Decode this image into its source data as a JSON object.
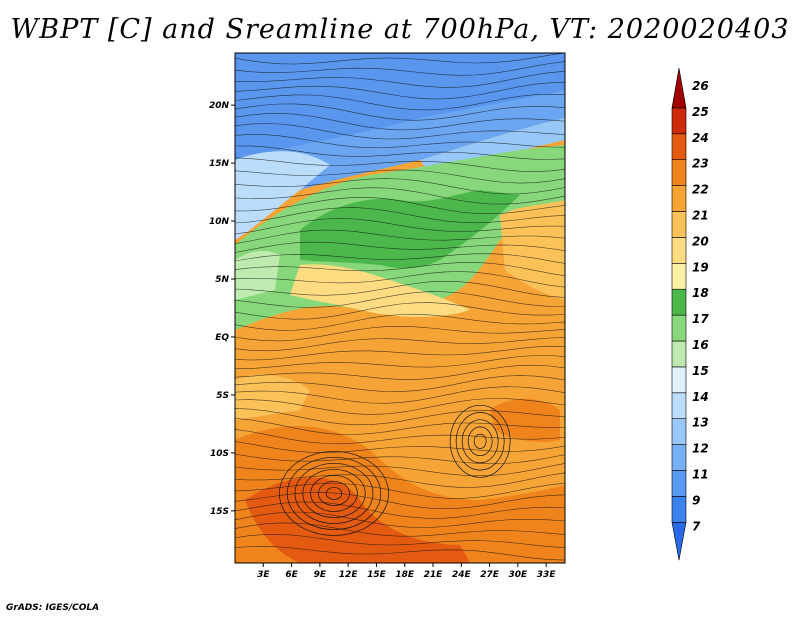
{
  "title": "WBPT [C] and Sreamline at 700hPa, VT: 2020020403",
  "credit": "GrADS: IGES/COLA",
  "map": {
    "lat_labels": [
      "20N",
      "15N",
      "10N",
      "5N",
      "EQ",
      "5S",
      "10S",
      "15S"
    ],
    "lat_values": [
      20,
      15,
      10,
      5,
      0,
      -5,
      -10,
      -15
    ],
    "lon_labels": [
      "3E",
      "6E",
      "9E",
      "12E",
      "15E",
      "18E",
      "21E",
      "24E",
      "27E",
      "30E",
      "33E"
    ],
    "lon_values": [
      3,
      6,
      9,
      12,
      15,
      18,
      21,
      24,
      27,
      30,
      33
    ],
    "lon_range": [
      0,
      35
    ],
    "lat_range": [
      -19.5,
      24.5
    ]
  },
  "colorbar": {
    "labels": [
      "7",
      "9",
      "11",
      "12",
      "13",
      "14",
      "15",
      "16",
      "17",
      "18",
      "19",
      "20",
      "21",
      "22",
      "23",
      "24",
      "25",
      "26"
    ],
    "colors": [
      "#2a6ae6",
      "#3c82ee",
      "#5a9af2",
      "#78b0f5",
      "#98c8f8",
      "#bcdcfb",
      "#e0f0fc",
      "#bfeab0",
      "#86d87a",
      "#4cb84c",
      "#fff0a8",
      "#fddc82",
      "#fbc25a",
      "#f7a436",
      "#f0841c",
      "#e45a10",
      "#cc2a08",
      "#a00000"
    ]
  }
}
